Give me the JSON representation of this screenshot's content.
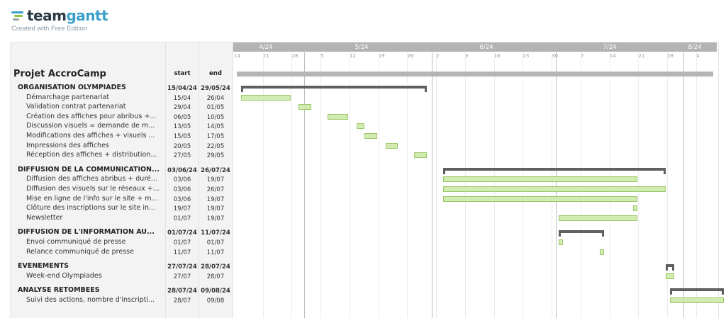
{
  "brand": {
    "name_part1": "team",
    "name_part2": "gantt",
    "tagline": "Created with Free Edition",
    "colors": {
      "dark": "#2a3a46",
      "accent": "#3aa0c9",
      "green": "#8cc63f"
    }
  },
  "project": {
    "title": "Projet AccroCamp",
    "col_start": "start",
    "col_end": "end"
  },
  "timeline": {
    "months": [
      "4/24",
      "5/24",
      "6/24",
      "7/24",
      "8/24"
    ],
    "days": [
      "14",
      "21",
      "28",
      "5",
      "12",
      "19",
      "26",
      "2",
      "9",
      "16",
      "23",
      "30",
      "7",
      "14",
      "21",
      "28",
      "4"
    ]
  },
  "groups": [
    {
      "name": "ORGANISATION OLYMPIADES",
      "start": "15/04/24",
      "end": "29/05/24",
      "tasks": [
        {
          "name": "Démarchage partenariat",
          "start": "15/04",
          "end": "26/04"
        },
        {
          "name": "Validation contrat partenariat",
          "start": "29/04",
          "end": "01/05"
        },
        {
          "name": "Création des affiches pour abribus +...",
          "start": "06/05",
          "end": "10/05"
        },
        {
          "name": "Discussion visuels = demande de m...",
          "start": "13/05",
          "end": "14/05"
        },
        {
          "name": "Modifications des affiches + visuels ...",
          "start": "15/05",
          "end": "17/05"
        },
        {
          "name": "Impressions des affiches",
          "start": "20/05",
          "end": "22/05"
        },
        {
          "name": "Réception des affiches + distribution...",
          "start": "27/05",
          "end": "29/05"
        }
      ]
    },
    {
      "name": "DIFFUSION DE LA COMMUNICATION...",
      "start": "03/06/24",
      "end": "26/07/24",
      "tasks": [
        {
          "name": "Diffusion des affiches abribus + duré...",
          "start": "03/06",
          "end": "19/07"
        },
        {
          "name": "Diffusion des visuels sur le réseaux +...",
          "start": "03/06",
          "end": "26/07"
        },
        {
          "name": "Mise en ligne de l'info sur le site + m...",
          "start": "03/06",
          "end": "19/07"
        },
        {
          "name": "Clôture des inscriptions sur le site in...",
          "start": "19/07",
          "end": "19/07"
        },
        {
          "name": "Newsletter",
          "start": "01/07",
          "end": "19/07"
        }
      ]
    },
    {
      "name": "DIFFUSION DE L'INFORMATION AU...",
      "start": "01/07/24",
      "end": "11/07/24",
      "tasks": [
        {
          "name": "Envoi communiqué de presse",
          "start": "01/07",
          "end": "01/07"
        },
        {
          "name": "Relance communiqué de presse",
          "start": "11/07",
          "end": "11/07"
        }
      ]
    },
    {
      "name": "EVENEMENTS",
      "start": "27/07/24",
      "end": "28/07/24",
      "tasks": [
        {
          "name": "Week-end Olympiades",
          "start": "27/07",
          "end": "28/07"
        }
      ]
    },
    {
      "name": "ANALYSE RETOMBEES",
      "start": "28/07/24",
      "end": "09/08/24",
      "tasks": [
        {
          "name": "Suivi des actions, nombre d'inscripti...",
          "start": "28/07",
          "end": "09/08"
        }
      ]
    }
  ]
}
